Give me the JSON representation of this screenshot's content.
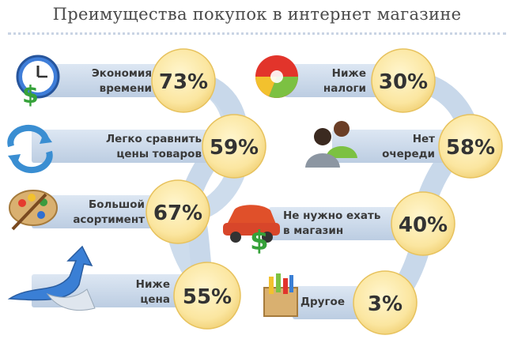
{
  "title": "Преимущества покупок в интернет магазине",
  "left": [
    {
      "line1": "Экономия",
      "line2": "времени",
      "percent": "73%",
      "icon": "clock-dollar-icon"
    },
    {
      "line1": "Легко сравнить",
      "line2": "цены товаров",
      "percent": "59%",
      "icon": "refresh-arrows-icon"
    },
    {
      "line1": "Большой",
      "line2": "асортимент",
      "percent": "67%",
      "icon": "palette-icon"
    },
    {
      "line1": "Ниже",
      "line2": "цена",
      "percent": "55%",
      "icon": "arrow-up-icon"
    }
  ],
  "right": [
    {
      "line1": "Ниже",
      "line2": "налоги",
      "percent": "30%",
      "icon": "pie-chart-icon"
    },
    {
      "line1": "Нет",
      "line2": "очереди",
      "percent": "58%",
      "icon": "people-icon"
    },
    {
      "line1": "Не нужно ехать",
      "line2": "в магазин",
      "percent": "40%",
      "icon": "car-dollar-icon"
    },
    {
      "line1": "Другое",
      "line2": "",
      "percent": "3%",
      "icon": "box-icon"
    }
  ],
  "colors": {
    "band": "#c8d8ea",
    "band_edge": "#aebfd6",
    "circle_fill": "#fbe6a0",
    "circle_edge": "#e7c25d",
    "percent_text": "#333333"
  }
}
